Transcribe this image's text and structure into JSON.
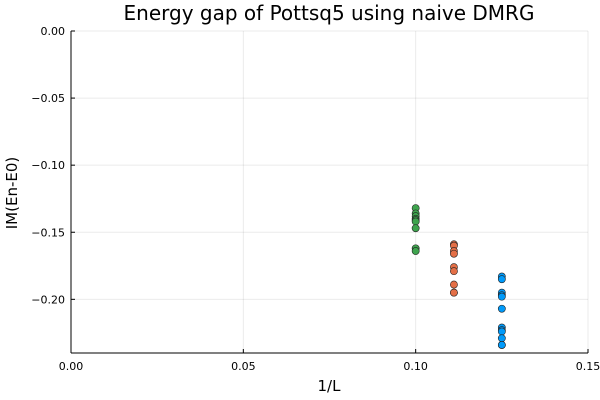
{
  "chart_data": {
    "type": "scatter",
    "title": "Energy gap of Pottsq5 using naive DMRG",
    "xlabel": "1/L",
    "ylabel": "IM(En-E0)",
    "xlim": [
      0.0,
      0.15
    ],
    "ylim": [
      -0.24,
      0.0
    ],
    "xticks": [
      0.0,
      0.05,
      0.1,
      0.15
    ],
    "xtick_labels": [
      "0.00",
      "0.05",
      "0.10",
      "0.15"
    ],
    "yticks": [
      0.0,
      -0.05,
      -0.1,
      -0.15,
      -0.2
    ],
    "ytick_labels": [
      "0.00",
      "−0.05",
      "−0.10",
      "−0.15",
      "−0.20"
    ],
    "grid": true,
    "legend": "none",
    "series": [
      {
        "color": "#009AFA",
        "x": [
          0.125,
          0.125,
          0.125,
          0.125,
          0.125,
          0.125,
          0.125,
          0.125,
          0.125,
          0.125,
          0.125,
          0.125
        ],
        "y": [
          -0.183,
          -0.185,
          -0.195,
          -0.197,
          -0.198,
          -0.207,
          -0.221,
          -0.223,
          -0.224,
          -0.229,
          -0.234,
          -0.234
        ]
      },
      {
        "color": "#E36F47",
        "x": [
          0.1111,
          0.1111,
          0.1111,
          0.1111,
          0.1111,
          0.1111,
          0.1111,
          0.1111,
          0.1111
        ],
        "y": [
          -0.159,
          -0.16,
          -0.164,
          -0.166,
          -0.176,
          -0.179,
          -0.189,
          -0.195,
          -0.195
        ]
      },
      {
        "color": "#3EA44E",
        "x": [
          0.1,
          0.1,
          0.1,
          0.1,
          0.1,
          0.1,
          0.1,
          0.1,
          0.1
        ],
        "y": [
          -0.132,
          -0.136,
          -0.138,
          -0.14,
          -0.141,
          -0.142,
          -0.147,
          -0.162,
          -0.164
        ]
      }
    ]
  }
}
